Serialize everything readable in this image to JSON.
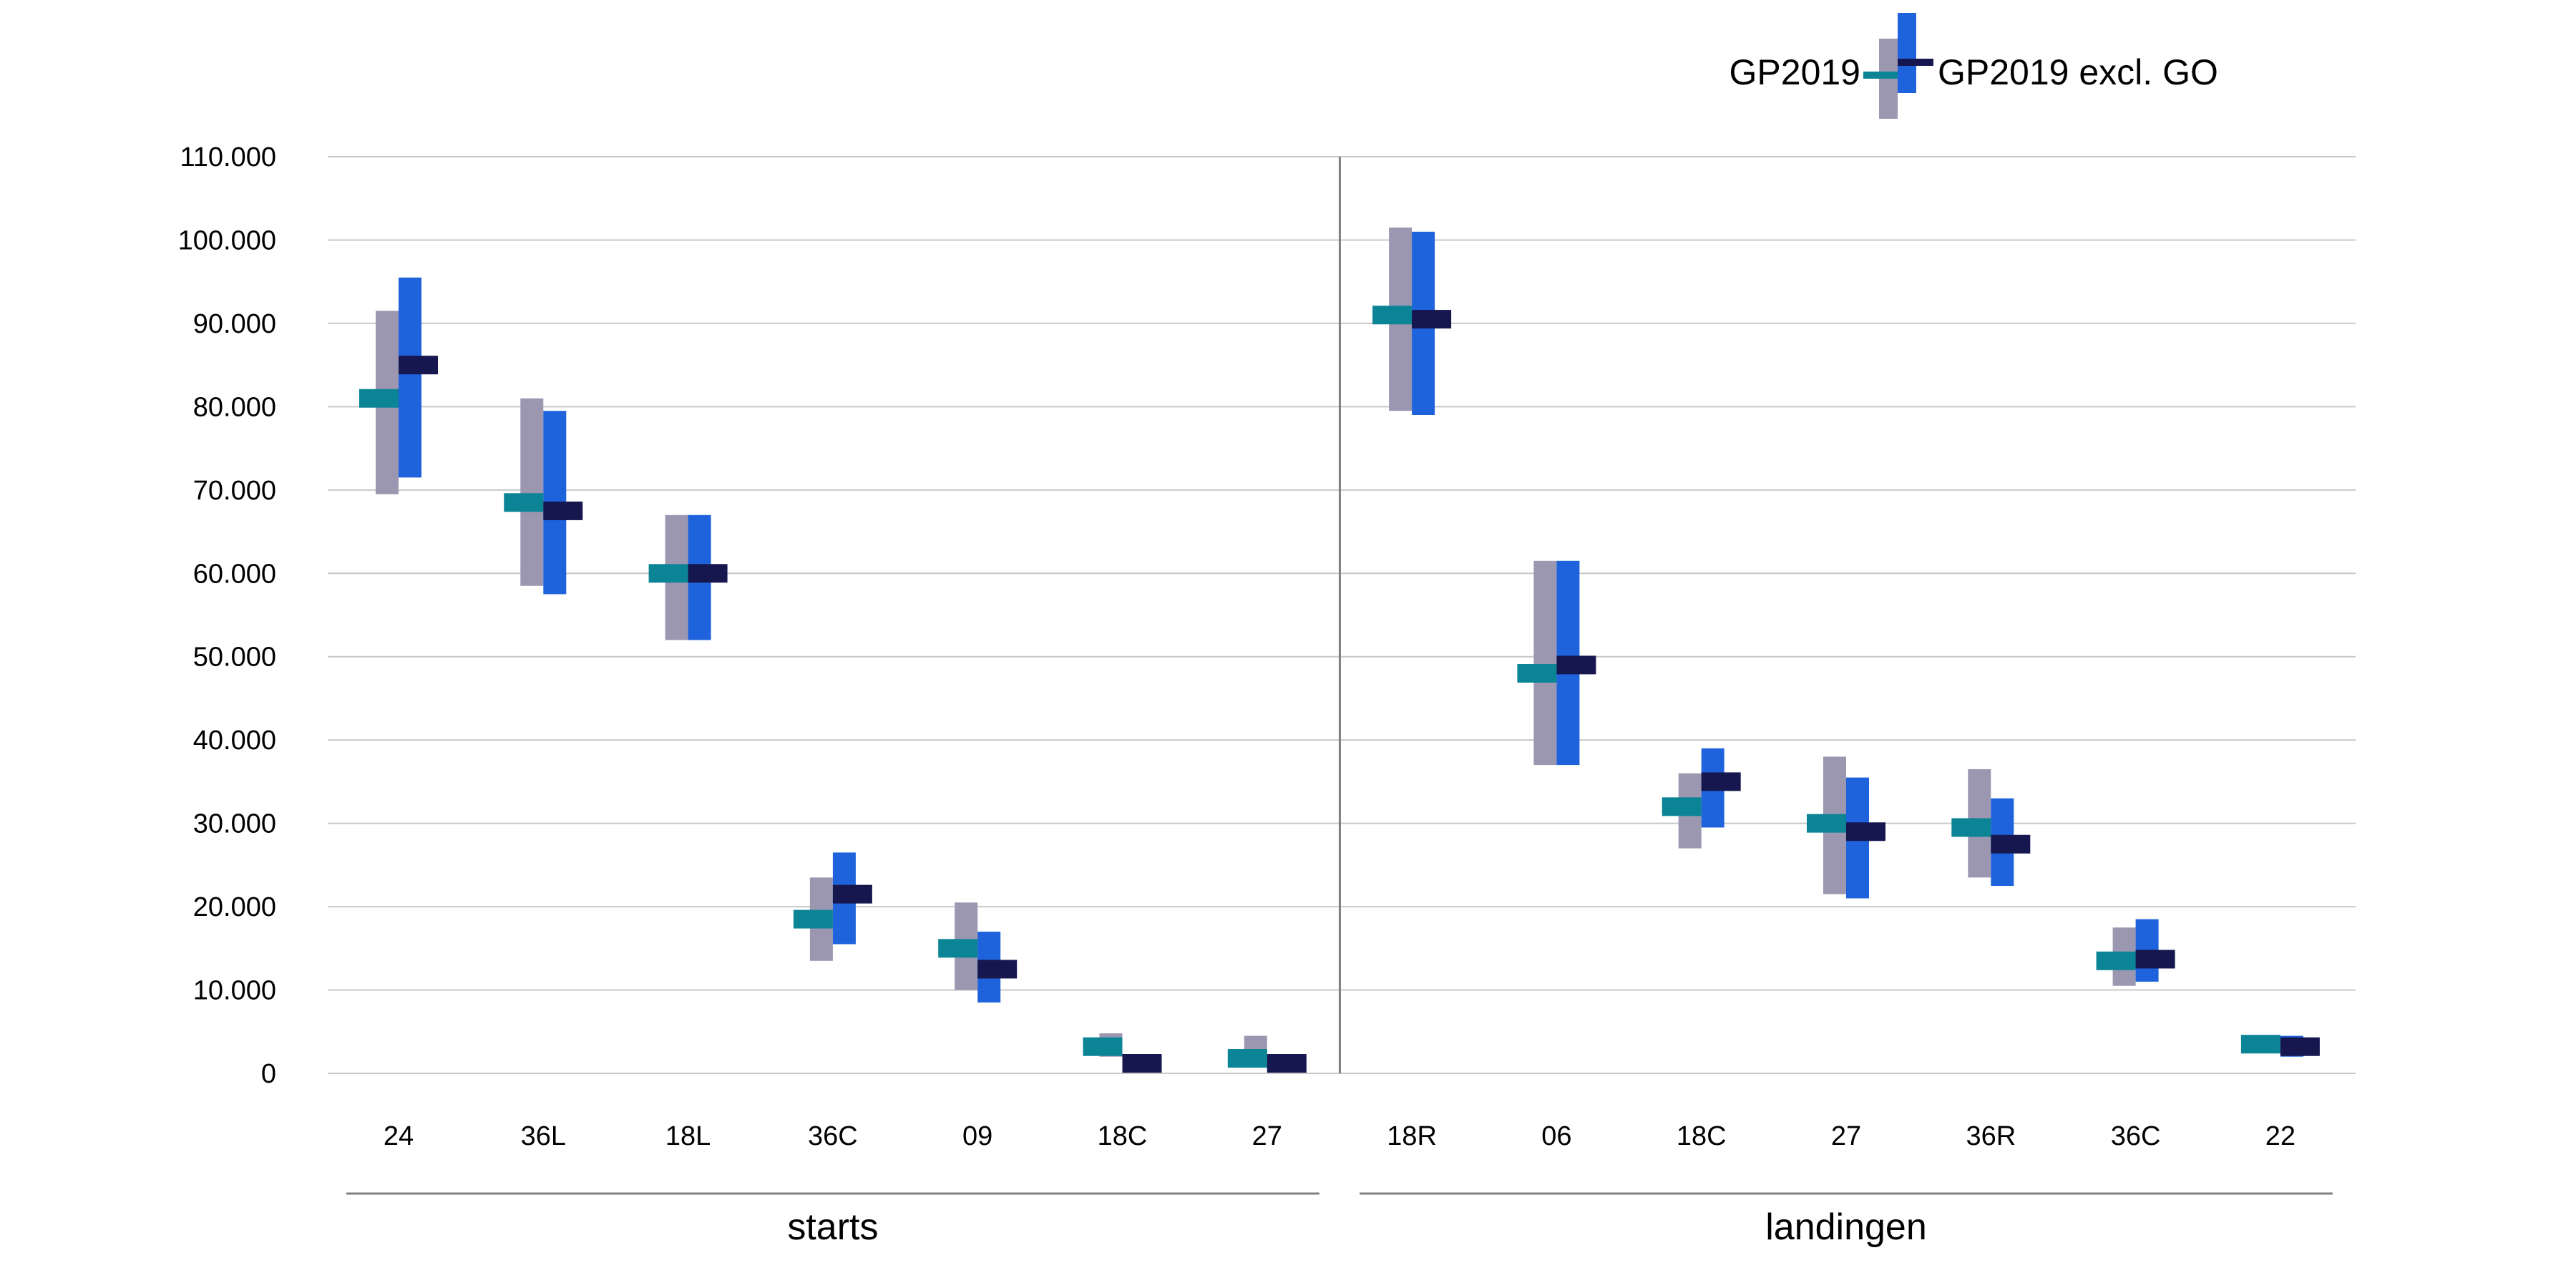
{
  "chart_data": {
    "type": "range-bar",
    "title": "",
    "xlabel": "",
    "ylabel": "",
    "ylim": [
      0,
      110000
    ],
    "yticks": [
      "0",
      "10.000",
      "20.000",
      "30.000",
      "40.000",
      "50.000",
      "60.000",
      "70.000",
      "80.000",
      "90.000",
      "100.000",
      "110.000"
    ],
    "ytick_values": [
      0,
      10000,
      20000,
      30000,
      40000,
      50000,
      60000,
      70000,
      80000,
      90000,
      100000,
      110000
    ],
    "grid": true,
    "legend_position": "top-right",
    "colors": {
      "gp2019_range": "#9b97b1",
      "gp2019_mean": "#0b8496",
      "excl_range": "#1f63dc",
      "excl_mean": "#16174f",
      "grid": "#c8c8c8",
      "axis": "#808080"
    },
    "groups": [
      {
        "label": "starts",
        "categories": [
          "24",
          "36L",
          "18L",
          "36C",
          "09",
          "18C",
          "27"
        ]
      },
      {
        "label": "landingen",
        "categories": [
          "18R",
          "06",
          "18C",
          "27",
          "36R",
          "36C",
          "22"
        ]
      }
    ],
    "series": [
      {
        "name": "GP2019",
        "low": [
          69500,
          58500,
          52000,
          13500,
          10000,
          2000,
          1500,
          79500,
          37000,
          27000,
          21500,
          23500,
          10500,
          2500
        ],
        "mean": [
          81000,
          68500,
          60000,
          18500,
          15000,
          3200,
          1800,
          91000,
          48000,
          32000,
          30000,
          29500,
          13500,
          3500
        ],
        "high": [
          91500,
          81000,
          67000,
          23500,
          20500,
          4800,
          4500,
          101500,
          61500,
          36000,
          38000,
          36500,
          17500,
          4500
        ]
      },
      {
        "name": "GP2019 excl. GO",
        "low": [
          71500,
          57500,
          52000,
          15500,
          8500,
          200,
          300,
          79000,
          37000,
          29500,
          21000,
          22500,
          11000,
          2000
        ],
        "mean": [
          85000,
          67500,
          60000,
          21500,
          12500,
          1200,
          1200,
          90500,
          49000,
          35000,
          29000,
          27500,
          13700,
          3200
        ],
        "high": [
          95500,
          79500,
          67000,
          26500,
          17000,
          1800,
          1800,
          101000,
          61500,
          39000,
          35500,
          33000,
          18500,
          4500
        ]
      }
    ]
  }
}
